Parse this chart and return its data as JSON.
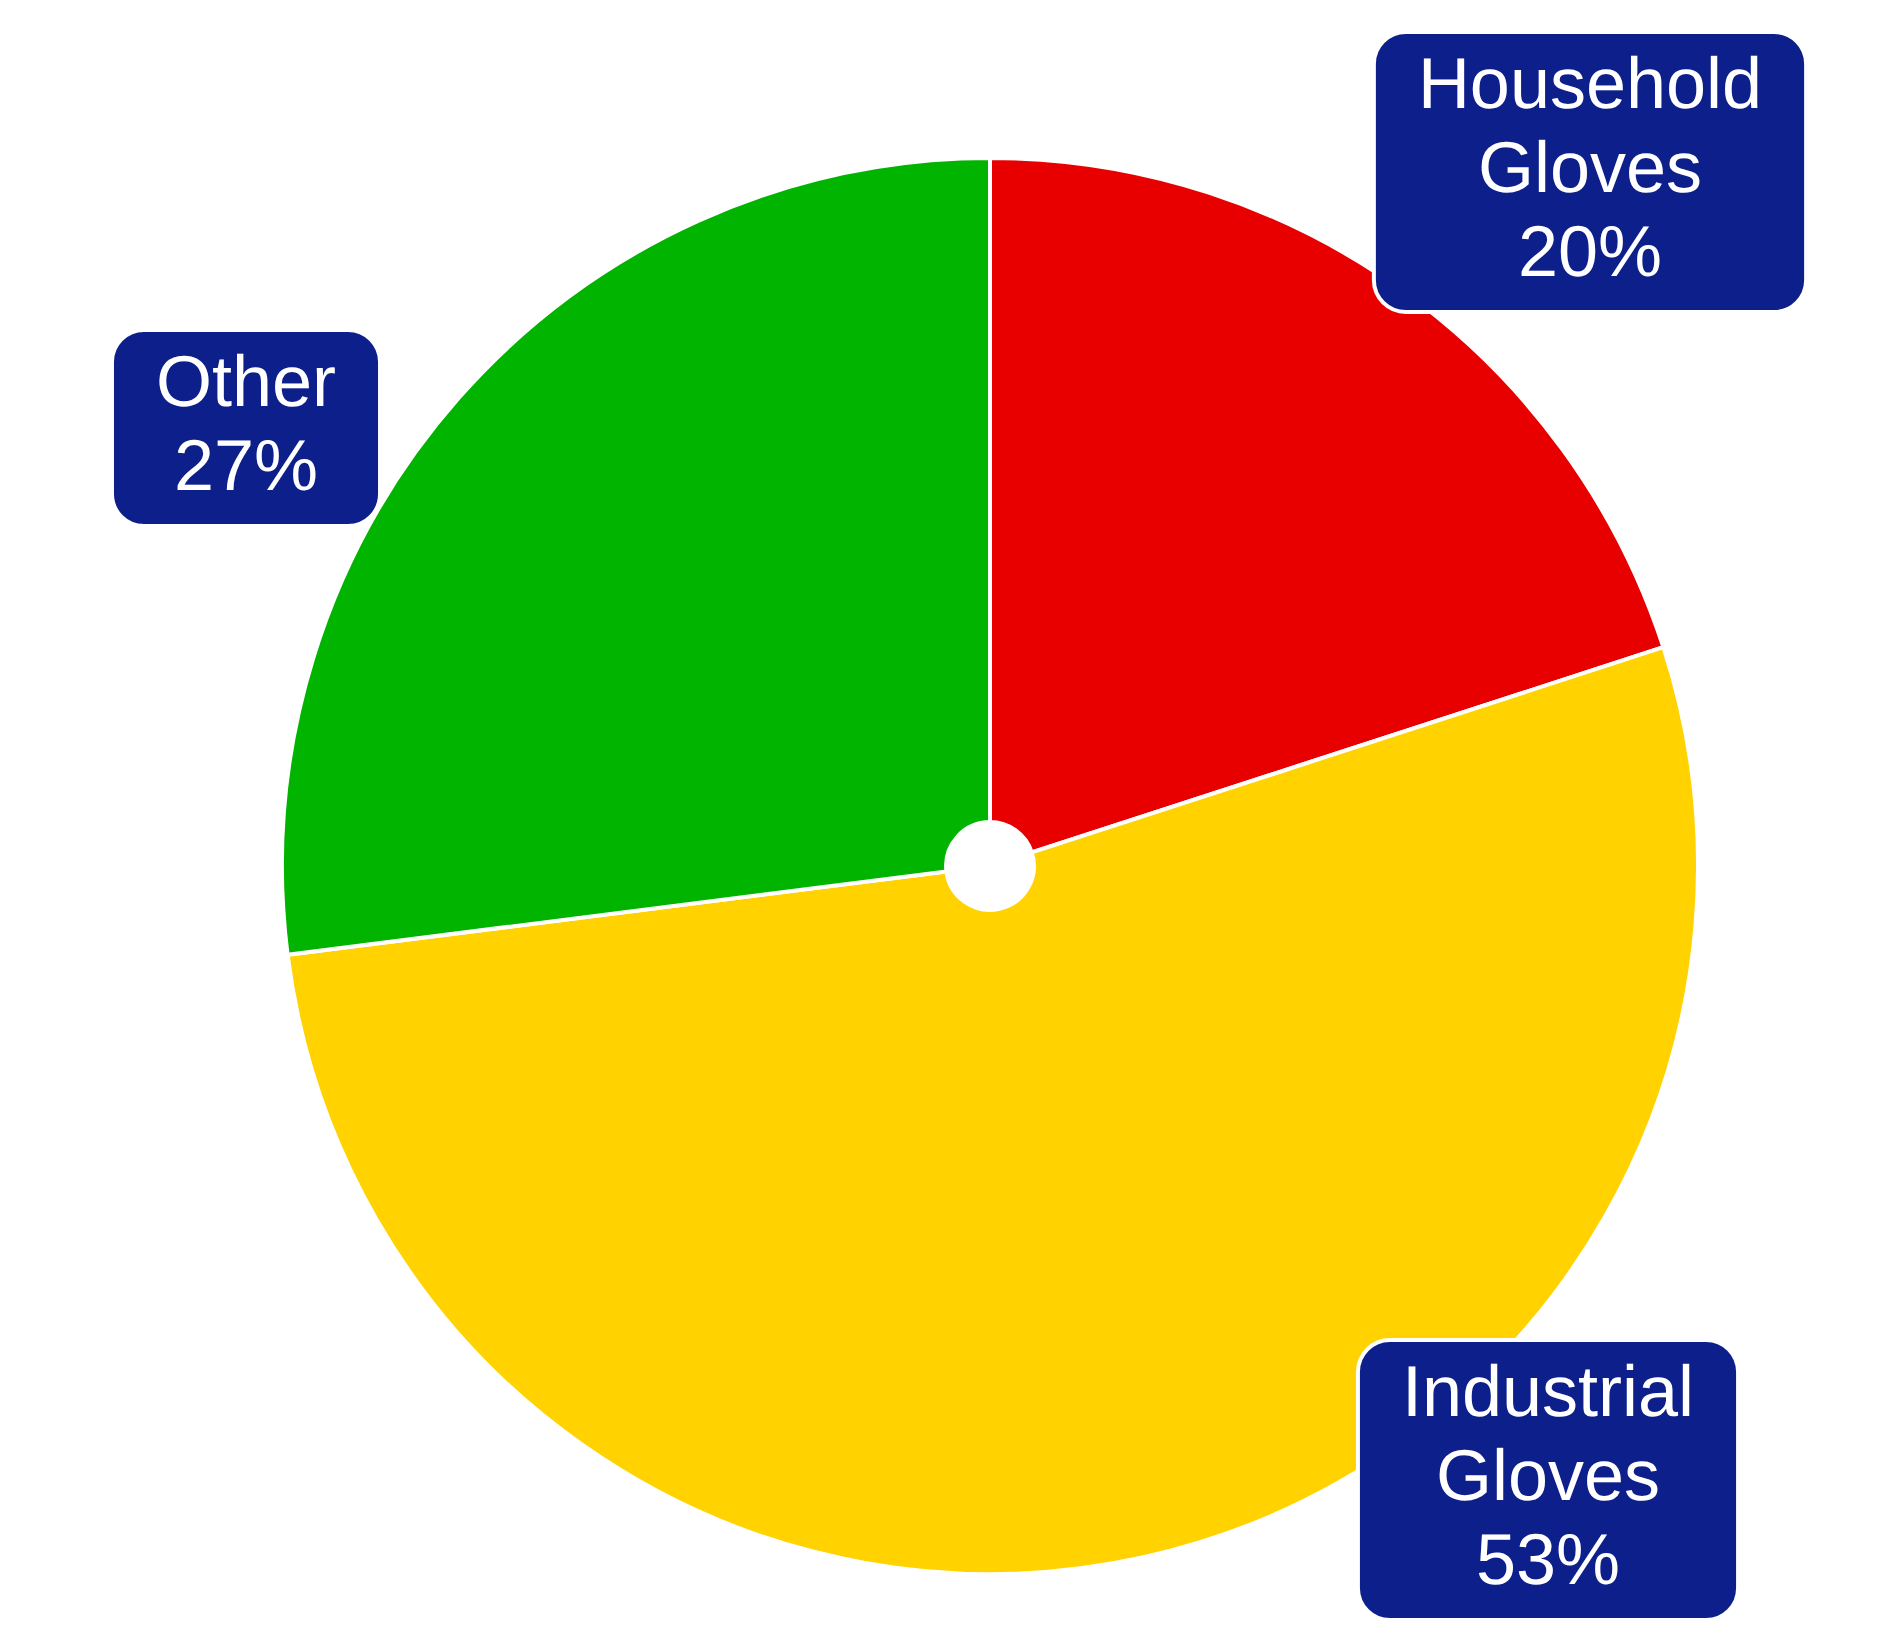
{
  "chart_data": {
    "type": "pie",
    "categories": [
      "Household Gloves",
      "Industrial Gloves",
      "Other"
    ],
    "values": [
      20,
      53,
      27
    ],
    "colors": [
      "#e80000",
      "#ffd200",
      "#00b400"
    ],
    "value_labels": [
      "20%",
      "53%",
      "27%"
    ],
    "legend": false
  }
}
